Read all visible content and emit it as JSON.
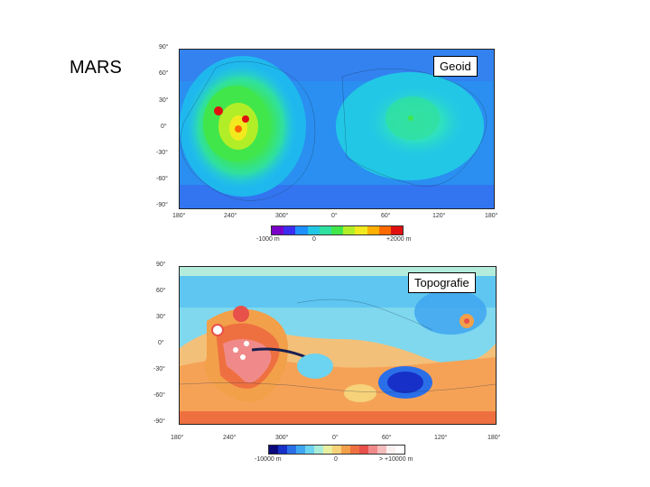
{
  "slide": {
    "title": "MARS"
  },
  "geoid": {
    "label": "Geoid",
    "lat_ticks": [
      "90°",
      "60°",
      "30°",
      "0°",
      "-30°",
      "-60°",
      "-90°"
    ],
    "lon_ticks": [
      "180°",
      "240°",
      "300°",
      "0°",
      "60°",
      "120°",
      "180°"
    ],
    "colorbar": {
      "min_label": "-1000 m",
      "mid_label": "0",
      "max_label": "+2000 m"
    },
    "colors": [
      "#7a00c8",
      "#3b2cf0",
      "#1e90ff",
      "#22c7e6",
      "#2fe0a0",
      "#41e64b",
      "#b2ee28",
      "#f2ea1e",
      "#ffb000",
      "#ff6a00",
      "#e01010"
    ]
  },
  "topography": {
    "label": "Topografie",
    "lat_ticks": [
      "90°",
      "60°",
      "30°",
      "0°",
      "-30°",
      "-60°",
      "-90°"
    ],
    "lon_ticks": [
      "180°",
      "240°",
      "300°",
      "0°",
      "60°",
      "120°",
      "180°"
    ],
    "colorbar": {
      "min_label": "-10000 m",
      "mid_label": "0",
      "max_label": "> +10000 m"
    },
    "colors": [
      "#0a0a7a",
      "#1630c8",
      "#2a6fe8",
      "#3fa6f0",
      "#6cd3f0",
      "#a9ecd8",
      "#e8f0a0",
      "#f6d27a",
      "#f3a04a",
      "#ee7040",
      "#e8504a",
      "#f08a8a",
      "#f4bcbc",
      "#faf0f0",
      "#ffffff"
    ]
  }
}
